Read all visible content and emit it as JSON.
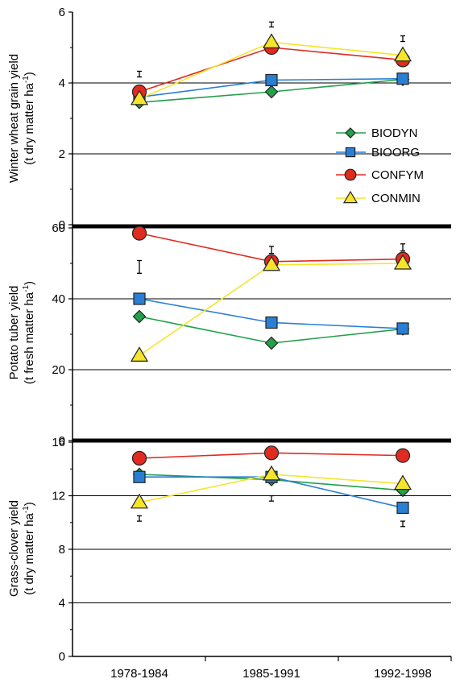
{
  "chart_data": [
    {
      "type": "line",
      "ylabel_line1": "Winter wheat grain yield",
      "ylabel_line2": "(t dry matter ha",
      "ylabel_sup": "-1",
      "ylabel_close": ")",
      "ylim": [
        0,
        6
      ],
      "yticks": [
        0,
        2,
        4,
        6
      ],
      "gridlines": [
        4,
        2
      ],
      "categories": [
        "1978-1984",
        "1985-1991",
        "1992-1998"
      ],
      "series": [
        {
          "name": "BIODYN",
          "values": [
            3.45,
            3.75,
            4.1
          ]
        },
        {
          "name": "BIOORG",
          "values": [
            3.6,
            4.08,
            4.12
          ]
        },
        {
          "name": "CONFYM",
          "values": [
            3.75,
            5.0,
            4.65
          ]
        },
        {
          "name": "CONMIN",
          "values": [
            3.55,
            5.15,
            4.78
          ]
        }
      ],
      "error_bars": [
        {
          "center": 4.25,
          "half": 0.08
        },
        {
          "center": 5.65,
          "half": 0.07
        },
        {
          "center": 5.25,
          "half": 0.08
        }
      ],
      "legend_position": "right"
    },
    {
      "type": "line",
      "ylabel_line1": "Potato tuber yield",
      "ylabel_line2": "(t fresh matter ha",
      "ylabel_sup": "-1",
      "ylabel_close": ")",
      "ylim": [
        0,
        62
      ],
      "yticks": [
        0,
        20,
        40,
        60
      ],
      "gridlines": [
        40,
        20
      ],
      "categories": [
        "1978-1984",
        "1985-1991",
        "1992-1998"
      ],
      "series": [
        {
          "name": "BIODYN",
          "values": [
            35,
            27.5,
            31.5
          ]
        },
        {
          "name": "BIOORG",
          "values": [
            40,
            33.3,
            31.6
          ]
        },
        {
          "name": "CONFYM",
          "values": [
            58.5,
            50.5,
            51.2
          ]
        },
        {
          "name": "CONMIN",
          "values": [
            24,
            49.6,
            50
          ]
        }
      ],
      "error_bars": [
        {
          "center": 49,
          "half": 1.8
        },
        {
          "center": 53.8,
          "half": 1.0
        },
        {
          "center": 54.5,
          "half": 1.0
        }
      ]
    },
    {
      "type": "line",
      "ylabel_line1": "Grass-clover yield",
      "ylabel_line2": "(t dry matter ha",
      "ylabel_sup": "-1",
      "ylabel_close": ")",
      "ylim": [
        0,
        16.4
      ],
      "yticks": [
        0,
        4,
        8,
        12,
        16
      ],
      "gridlines": [
        12,
        8,
        4
      ],
      "categories": [
        "1978-1984",
        "1985-1991",
        "1992-1998"
      ],
      "series": [
        {
          "name": "BIODYN",
          "values": [
            13.6,
            13.2,
            12.4
          ]
        },
        {
          "name": "BIOORG",
          "values": [
            13.4,
            13.4,
            11.1
          ]
        },
        {
          "name": "CONFYM",
          "values": [
            14.8,
            15.2,
            15.0
          ]
        },
        {
          "name": "CONMIN",
          "values": [
            11.5,
            13.6,
            12.9
          ]
        }
      ],
      "error_bars": [
        {
          "center": 10.3,
          "half": 0.2
        },
        {
          "center": 11.8,
          "half": 0.2
        },
        {
          "center": 9.9,
          "half": 0.2
        }
      ]
    }
  ],
  "series_style": {
    "BIODYN": {
      "line_color": "#22a04a",
      "fill": "#22a04a",
      "marker": "diamond"
    },
    "BIOORG": {
      "line_color": "#2a7fd4",
      "fill": "#2a7fd4",
      "marker": "square"
    },
    "CONFYM": {
      "line_color": "#e02b20",
      "fill": "#e02b20",
      "marker": "circle"
    },
    "CONMIN": {
      "line_color": "#f5e52a",
      "fill": "#f5e52a",
      "marker": "triangle"
    }
  },
  "legend": {
    "items": [
      "BIODYN",
      "BIOORG",
      "CONFYM",
      "CONMIN"
    ]
  }
}
